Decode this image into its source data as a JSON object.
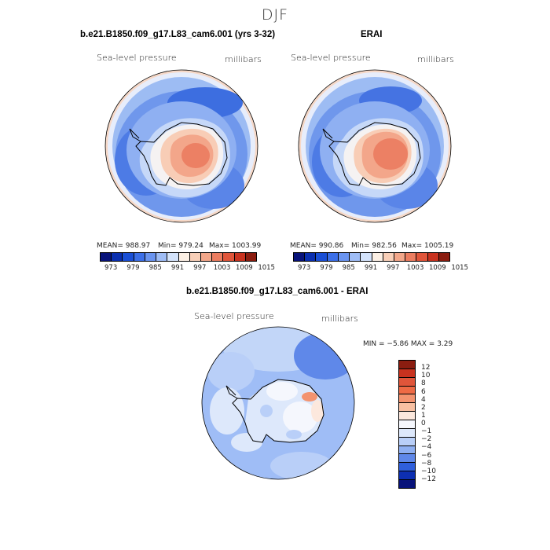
{
  "figure": {
    "season": "DJF"
  },
  "panel_a": {
    "title": "b.e21.B1850.f09_g17.L83_cam6.001 (yrs 3-32)",
    "left_label": "Sea-level pressure",
    "right_label": "millibars",
    "mean": "MEAN= 988.97",
    "min": "Min= 979.24",
    "max": "Max= 1003.99"
  },
  "panel_b": {
    "title": "ERAI",
    "left_label": "Sea-level pressure",
    "right_label": "millibars",
    "mean": "MEAN= 990.86",
    "min": "Min= 982.56",
    "max": "Max= 1005.19"
  },
  "panel_c": {
    "title": "b.e21.B1850.f09_g17.L83_cam6.001 - ERAI",
    "left_label": "Sea-level pressure",
    "right_label": "millibars",
    "minmax": "MIN =  −5.86 MAX =   3.29"
  },
  "colorbar_abs": {
    "labels": [
      "973",
      "979",
      "985",
      "991",
      "997",
      "1003",
      "1009",
      "1015"
    ],
    "colors": [
      "#08137a",
      "#0a2fb0",
      "#1a4fd6",
      "#3c6fe8",
      "#6a94f0",
      "#9fbdf6",
      "#d4e3fb",
      "#fbefe4",
      "#f8cfb8",
      "#f3a78a",
      "#ec7d60",
      "#e0553a",
      "#c8321f",
      "#8b1d10"
    ]
  },
  "colorbar_diff": {
    "labels": [
      "12",
      "10",
      "8",
      "6",
      "4",
      "2",
      "1",
      "0",
      "−1",
      "−2",
      "−4",
      "−6",
      "−8",
      "−10",
      "−12"
    ],
    "colors": [
      "#8b1d10",
      "#c8321f",
      "#e0553a",
      "#ee6a45",
      "#f3936f",
      "#f8c0a2",
      "#fce8dd",
      "#f5f7fd",
      "#dde8fb",
      "#b9cff8",
      "#8fb0f2",
      "#5f88e9",
      "#2f5fdc",
      "#0d2fb2",
      "#08137a"
    ]
  }
}
